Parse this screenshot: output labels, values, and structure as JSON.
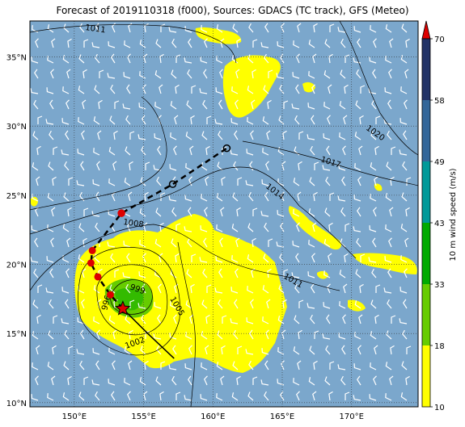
{
  "title": "Forecast of 2019110318 (f000), Sources: GDACS (TC track), GFS (Meteo)",
  "axes": {
    "lon_labels": [
      {
        "text": "150°E",
        "lon": 150
      },
      {
        "text": "155°E",
        "lon": 155
      },
      {
        "text": "160°E",
        "lon": 160
      },
      {
        "text": "165°E",
        "lon": 165
      },
      {
        "text": "170°E",
        "lon": 170
      }
    ],
    "lat_labels": [
      {
        "text": "35°N",
        "lat": 35
      },
      {
        "text": "30°N",
        "lat": 30
      },
      {
        "text": "25°N",
        "lat": 25
      },
      {
        "text": "20°N",
        "lat": 20
      },
      {
        "text": "15°N",
        "lat": 15
      },
      {
        "text": "10°N",
        "lat": 10
      }
    ],
    "lon_range": [
      146.8,
      174.8
    ],
    "lat_range": [
      9.7,
      37.6
    ],
    "grid": true
  },
  "colorbar": {
    "label": "10 m wind speed (m/s)",
    "levels": [
      10,
      18,
      33,
      43,
      49,
      58,
      70
    ],
    "tick_labels": [
      "10",
      "18",
      "33",
      "43",
      "49",
      "58",
      "70"
    ],
    "colors": [
      "#ffff00",
      "#66cc00",
      "#00aa00",
      "#009999",
      "#336699",
      "#223366"
    ],
    "extend_color": "#dd0000"
  },
  "isobars": [
    {
      "label": "1011"
    },
    {
      "label": "1020"
    },
    {
      "label": "1017"
    },
    {
      "label": "1014"
    },
    {
      "label": "1008"
    },
    {
      "label": "1011"
    },
    {
      "label": "999"
    },
    {
      "label": "1005"
    },
    {
      "label": "996"
    },
    {
      "label": "1002"
    }
  ],
  "track": {
    "past_points": [
      {
        "lon": 153.5,
        "lat": 16.8
      },
      {
        "lon": 152.6,
        "lat": 17.8
      },
      {
        "lon": 151.7,
        "lat": 19.1
      },
      {
        "lon": 151.2,
        "lat": 20.1
      },
      {
        "lon": 151.3,
        "lat": 21.0
      }
    ],
    "forecast_points": [
      {
        "lon": 151.3,
        "lat": 21.0
      },
      {
        "lon": 153.4,
        "lat": 23.7
      },
      {
        "lon": 157.1,
        "lat": 25.8
      },
      {
        "lon": 161.0,
        "lat": 28.4
      }
    ],
    "history_points": [
      {
        "lon": 153.5,
        "lat": 16.8
      },
      {
        "lon": 155.3,
        "lat": 15.0
      },
      {
        "lon": 157.2,
        "lat": 13.2
      }
    ],
    "current_position": {
      "lon": 153.5,
      "lat": 16.8
    }
  },
  "colors": {
    "ocean": "#7ba7cc",
    "wind_low": "#ffff00",
    "wind_mid": "#66cc00",
    "track_red": "#dd0000",
    "isobar": "#000000"
  }
}
